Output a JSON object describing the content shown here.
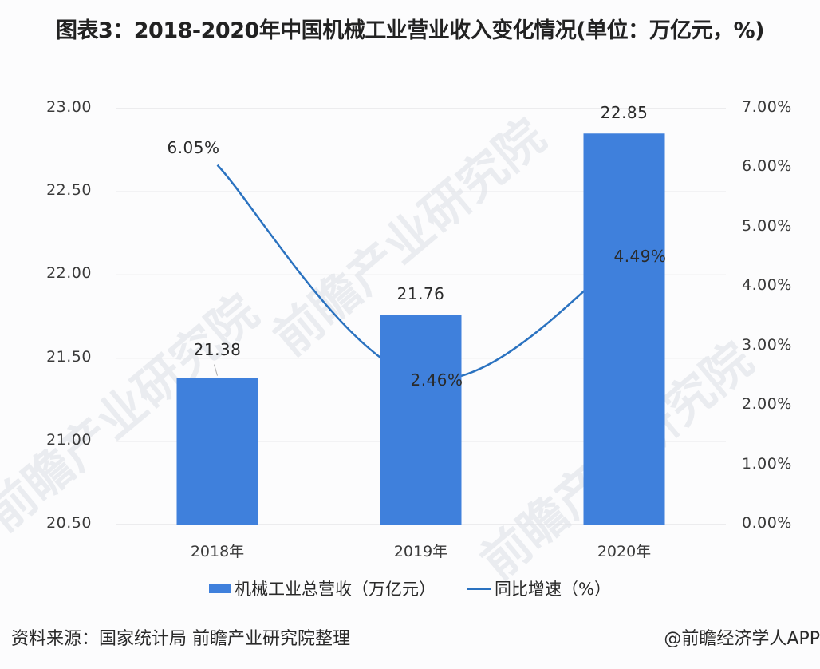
{
  "title": "图表3：2018-2020年中国机械工业营业收入变化情况(单位：万亿元，%)",
  "chart_data": {
    "type": "bar+line",
    "title": "图表3：2018-2020年中国机械工业营业收入变化情况(单位：万亿元，%)",
    "categories": [
      "2018年",
      "2019年",
      "2020年"
    ],
    "series": [
      {
        "name": "机械工业总营收（万亿元）",
        "type": "bar",
        "axis": "left",
        "values": [
          21.38,
          21.76,
          22.85
        ],
        "labels": [
          "21.38",
          "21.76",
          "22.85"
        ],
        "color": "#3f80dc"
      },
      {
        "name": "同比增速（%）",
        "type": "line",
        "axis": "right",
        "values": [
          6.05,
          2.46,
          4.49
        ],
        "labels": [
          "6.05%",
          "2.46%",
          "4.49%"
        ],
        "color": "#2a72c0"
      }
    ],
    "y_left": {
      "ticks": [
        "23.00",
        "22.50",
        "22.00",
        "21.50",
        "21.00",
        "20.50"
      ],
      "range": [
        20.5,
        23.0
      ]
    },
    "y_right": {
      "ticks": [
        "7.00%",
        "6.00%",
        "5.00%",
        "4.00%",
        "3.00%",
        "2.00%",
        "1.00%",
        "0.00%"
      ],
      "range": [
        0,
        7
      ]
    },
    "grid": true,
    "legend_position": "bottom"
  },
  "legend": {
    "bar_label": "机械工业总营收（万亿元）",
    "line_label": "同比增速（%）"
  },
  "footer": {
    "source": "资料来源：国家统计局 前瞻产业研究院整理",
    "credit": "@前瞻经济学人APP"
  },
  "watermark": "前瞻产业研究院"
}
